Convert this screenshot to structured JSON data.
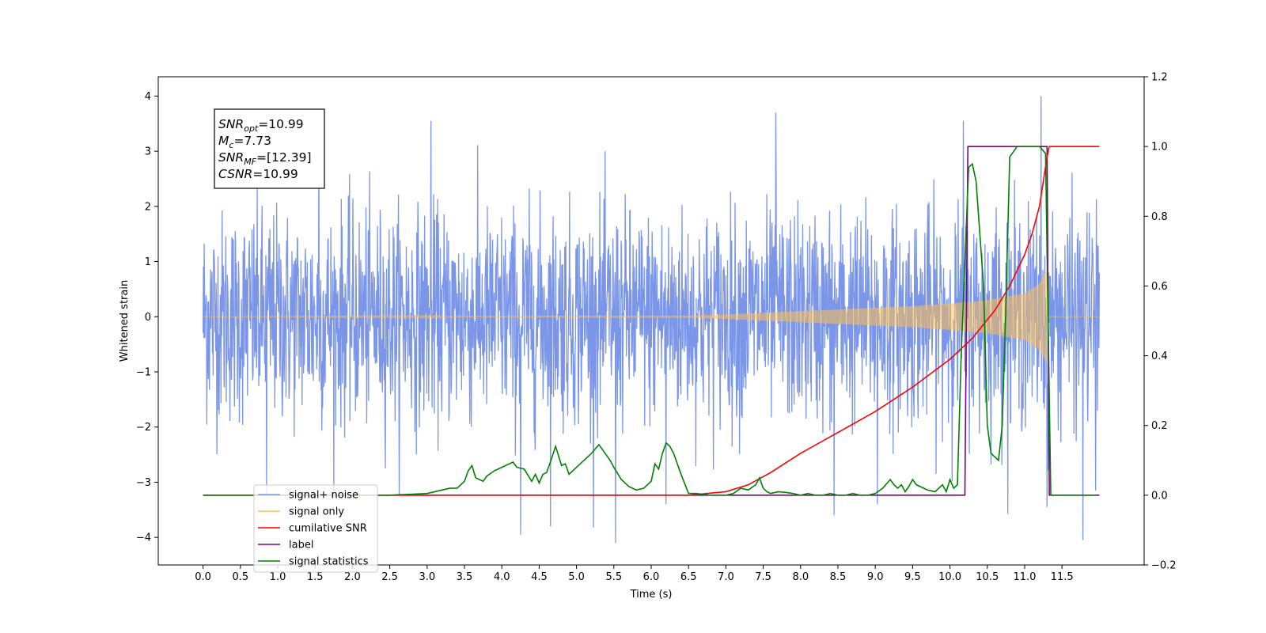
{
  "chart_data": {
    "type": "line",
    "xlabel": "Time (s)",
    "ylabel": "Whitened strain",
    "xlim": [
      -0.6,
      12.6
    ],
    "ylim": [
      -4.5,
      4.35
    ],
    "ylim_right": [
      -0.2,
      1.2
    ],
    "x_ticks": [
      0.0,
      0.5,
      1.0,
      1.5,
      2.0,
      2.5,
      3.0,
      3.5,
      4.0,
      4.5,
      5.0,
      5.5,
      6.0,
      6.5,
      7.0,
      7.5,
      8.0,
      8.5,
      9.0,
      9.5,
      10.0,
      10.5,
      11.0,
      11.5
    ],
    "x_tick_labels": [
      "0.0",
      "0.5",
      "1.0",
      "1.5",
      "2.0",
      "2.5",
      "3.0",
      "3.5",
      "4.0",
      "4.5",
      "5.0",
      "5.5",
      "6.0",
      "6.5",
      "7.0",
      "7.5",
      "8.0",
      "8.5",
      "9.0",
      "9.5",
      "10.0",
      "10.5",
      "11.0",
      "11.5"
    ],
    "y_ticks": [
      -4,
      -3,
      -2,
      -1,
      0,
      1,
      2,
      3,
      4
    ],
    "y_tick_labels": [
      "−4",
      "−3",
      "−2",
      "−1",
      "0",
      "1",
      "2",
      "3",
      "4"
    ],
    "y2_ticks": [
      -0.2,
      0.0,
      0.2,
      0.4,
      0.6,
      0.8,
      1.0,
      1.2
    ],
    "y2_tick_labels": [
      "−0.2",
      "0.0",
      "0.2",
      "0.4",
      "0.6",
      "0.8",
      "1.0",
      "1.2"
    ],
    "grid": false,
    "legend_position": "lower-left",
    "annotation": {
      "lines": [
        {
          "symbol": "SNR",
          "subscript": "opt",
          "value": "=10.99"
        },
        {
          "symbol": "M",
          "subscript": "c",
          "value": "=7.73"
        },
        {
          "symbol": "SNR",
          "subscript": "MF",
          "value": "=[12.39]"
        },
        {
          "symbol": "CSNR",
          "subscript": "",
          "value": "=10.99"
        }
      ]
    },
    "series": [
      {
        "name": "signal+ noise",
        "color": "#7b96e8",
        "axis": "left",
        "noise_sigma": 1.0,
        "x_range": [
          0.0,
          12.0
        ],
        "spikes": [
          {
            "x": 0.85,
            "y": -3.2
          },
          {
            "x": 1.55,
            "y": 3.3
          },
          {
            "x": 3.05,
            "y": 3.55
          },
          {
            "x": 4.25,
            "y": -3.95
          },
          {
            "x": 4.65,
            "y": -3.8
          },
          {
            "x": 5.52,
            "y": -4.1
          },
          {
            "x": 6.2,
            "y": -3.4
          },
          {
            "x": 7.67,
            "y": 3.7
          },
          {
            "x": 8.45,
            "y": -3.6
          },
          {
            "x": 9.03,
            "y": -3.4
          },
          {
            "x": 10.18,
            "y": 3.55
          },
          {
            "x": 11.22,
            "y": 4.0
          },
          {
            "x": 11.3,
            "y": -3.45
          },
          {
            "x": 11.78,
            "y": -4.05
          },
          {
            "x": 11.95,
            "y": -3.15
          }
        ]
      },
      {
        "name": "signal only",
        "color": "#ffbf50",
        "axis": "left",
        "x_range": [
          0.0,
          12.0
        ],
        "envelope": {
          "x": [
            0.0,
            6.5,
            7.0,
            7.5,
            8.0,
            8.5,
            9.0,
            9.5,
            10.0,
            10.5,
            11.0,
            11.2,
            11.3,
            11.32,
            12.0
          ],
          "y": [
            0.0,
            0.02,
            0.04,
            0.07,
            0.1,
            0.13,
            0.16,
            0.19,
            0.24,
            0.3,
            0.42,
            0.6,
            0.85,
            0.0,
            0.0
          ]
        }
      },
      {
        "name": "cumilative SNR",
        "color": "#ff0000",
        "axis": "right",
        "x": [
          0.0,
          6.0,
          6.5,
          7.0,
          7.3,
          7.6,
          8.0,
          8.5,
          9.0,
          9.5,
          10.0,
          10.3,
          10.6,
          10.8,
          11.0,
          11.1,
          11.2,
          11.25,
          11.3,
          11.33,
          12.0
        ],
        "y": [
          0.0,
          0.0,
          0.0,
          0.01,
          0.03,
          0.065,
          0.12,
          0.18,
          0.24,
          0.31,
          0.39,
          0.45,
          0.53,
          0.6,
          0.69,
          0.75,
          0.83,
          0.9,
          0.97,
          1.0,
          1.0
        ]
      },
      {
        "name": "label",
        "color": "#800080",
        "axis": "right",
        "x": [
          0.0,
          10.2,
          10.24,
          11.3,
          11.33,
          12.0
        ],
        "y": [
          0.0,
          0.0,
          1.0,
          1.0,
          0.0,
          0.0
        ]
      },
      {
        "name": "signal statistics",
        "color": "#008000",
        "axis": "right",
        "x": [
          0.0,
          2.5,
          3.0,
          3.3,
          3.4,
          3.5,
          3.55,
          3.6,
          3.65,
          3.75,
          3.8,
          3.9,
          4.0,
          4.1,
          4.15,
          4.2,
          4.3,
          4.4,
          4.45,
          4.5,
          4.55,
          4.6,
          4.65,
          4.72,
          4.8,
          4.85,
          4.9,
          5.0,
          5.1,
          5.2,
          5.3,
          5.35,
          5.4,
          5.45,
          5.5,
          5.6,
          5.7,
          5.8,
          5.9,
          6.0,
          6.05,
          6.1,
          6.15,
          6.2,
          6.25,
          6.3,
          6.4,
          6.5,
          6.6,
          6.8,
          7.0,
          7.1,
          7.2,
          7.3,
          7.4,
          7.45,
          7.5,
          7.55,
          7.6,
          7.7,
          7.8,
          7.9,
          8.0,
          8.1,
          8.2,
          8.3,
          8.4,
          8.5,
          8.6,
          8.7,
          8.8,
          8.9,
          9.0,
          9.1,
          9.2,
          9.25,
          9.3,
          9.35,
          9.4,
          9.45,
          9.5,
          9.55,
          9.6,
          9.7,
          9.8,
          9.9,
          9.95,
          10.0,
          10.05,
          10.1,
          10.15,
          10.25,
          10.3,
          10.35,
          10.45,
          10.5,
          10.55,
          10.65,
          10.7,
          10.75,
          10.8,
          10.9,
          11.0,
          11.05,
          11.2,
          11.28,
          11.35,
          11.5,
          11.95
        ],
        "y": [
          0.0,
          0.0,
          0.005,
          0.02,
          0.02,
          0.04,
          0.07,
          0.085,
          0.05,
          0.04,
          0.055,
          0.07,
          0.08,
          0.09,
          0.095,
          0.08,
          0.075,
          0.04,
          0.06,
          0.035,
          0.06,
          0.065,
          0.095,
          0.14,
          0.085,
          0.09,
          0.06,
          0.08,
          0.1,
          0.12,
          0.145,
          0.13,
          0.115,
          0.1,
          0.08,
          0.045,
          0.025,
          0.015,
          0.02,
          0.04,
          0.09,
          0.075,
          0.12,
          0.15,
          0.14,
          0.12,
          0.06,
          0.005,
          0.005,
          0.0,
          0.0,
          0.005,
          0.02,
          0.015,
          0.03,
          0.05,
          0.02,
          0.01,
          0.005,
          0.01,
          0.008,
          0.005,
          0.0,
          0.005,
          0.0,
          0.0,
          0.005,
          0.0,
          0.0,
          0.005,
          0.0,
          0.0,
          0.005,
          0.02,
          0.045,
          0.03,
          0.02,
          0.03,
          0.01,
          0.025,
          0.045,
          0.03,
          0.025,
          0.015,
          0.01,
          0.03,
          0.01,
          0.045,
          0.02,
          0.03,
          0.4,
          0.94,
          0.95,
          0.9,
          0.6,
          0.2,
          0.12,
          0.1,
          0.2,
          0.55,
          0.97,
          1.0,
          1.0,
          1.0,
          1.0,
          0.98,
          0.0,
          0.0,
          0.0
        ]
      }
    ]
  }
}
